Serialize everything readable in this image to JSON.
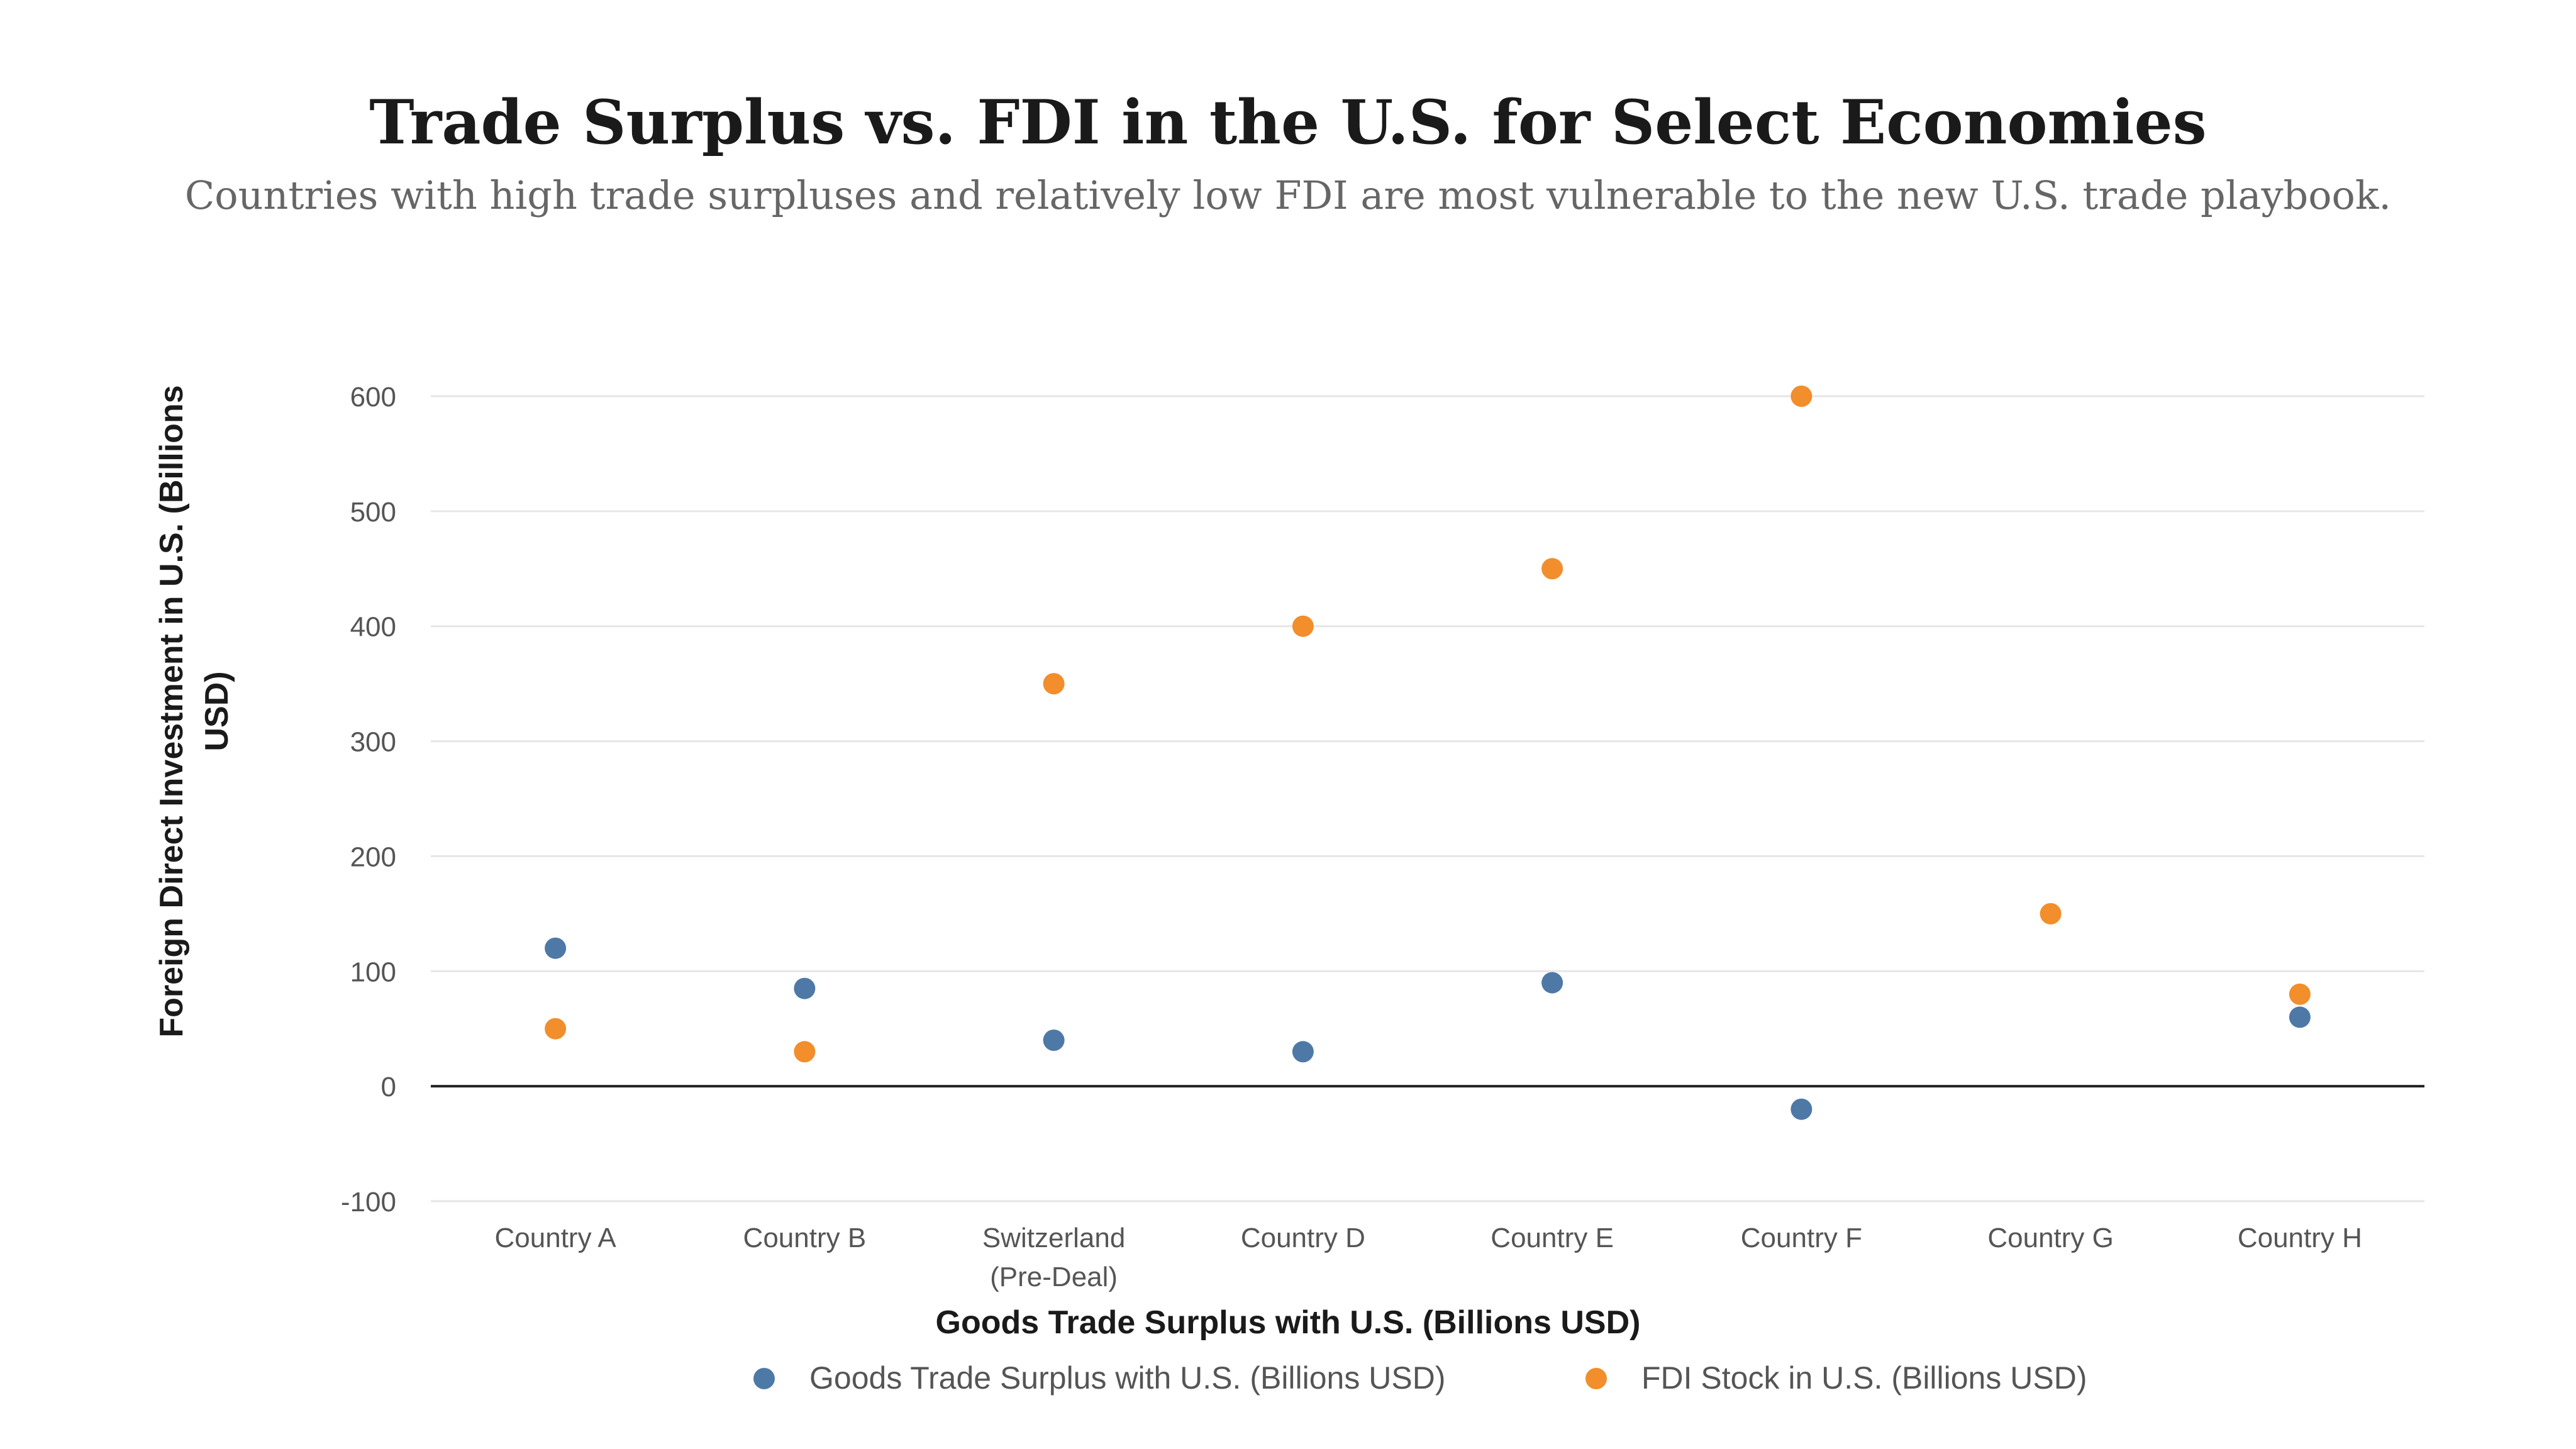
{
  "chart_data": {
    "type": "scatter",
    "title": "Trade Surplus vs. FDI in the U.S. for Select Economies",
    "subtitle": "Countries with high trade surpluses and relatively low FDI are most vulnerable to the new U.S. trade playbook.",
    "xlabel": "Goods Trade Surplus with U.S. (Billions USD)",
    "ylabel": "Foreign Direct Investment in U.S. (Billions USD)",
    "ylabel_lines": [
      "Foreign Direct Investment in U.S. (Billions",
      "USD)"
    ],
    "categories": [
      [
        "Country A"
      ],
      [
        "Country B"
      ],
      [
        "Switzerland",
        "(Pre-Deal)"
      ],
      [
        "Country D"
      ],
      [
        "Country E"
      ],
      [
        "Country F"
      ],
      [
        "Country G"
      ],
      [
        "Country H"
      ]
    ],
    "ylim": [
      -100,
      600
    ],
    "yticks": [
      "600",
      "500",
      "400",
      "300",
      "200",
      "100",
      "0",
      "-100"
    ],
    "ytick_values": [
      600,
      500,
      400,
      300,
      200,
      100,
      0,
      -100
    ],
    "grid": true,
    "legend_position": "bottom",
    "series": [
      {
        "name": "Goods Trade Surplus with U.S. (Billions USD)",
        "color": "#4e79a7",
        "values": [
          120,
          85,
          40,
          30,
          90,
          -20,
          null,
          60
        ]
      },
      {
        "name": "FDI Stock in U.S. (Billions USD)",
        "color": "#f28e2b",
        "values": [
          50,
          30,
          350,
          400,
          450,
          600,
          150,
          80
        ]
      }
    ]
  }
}
